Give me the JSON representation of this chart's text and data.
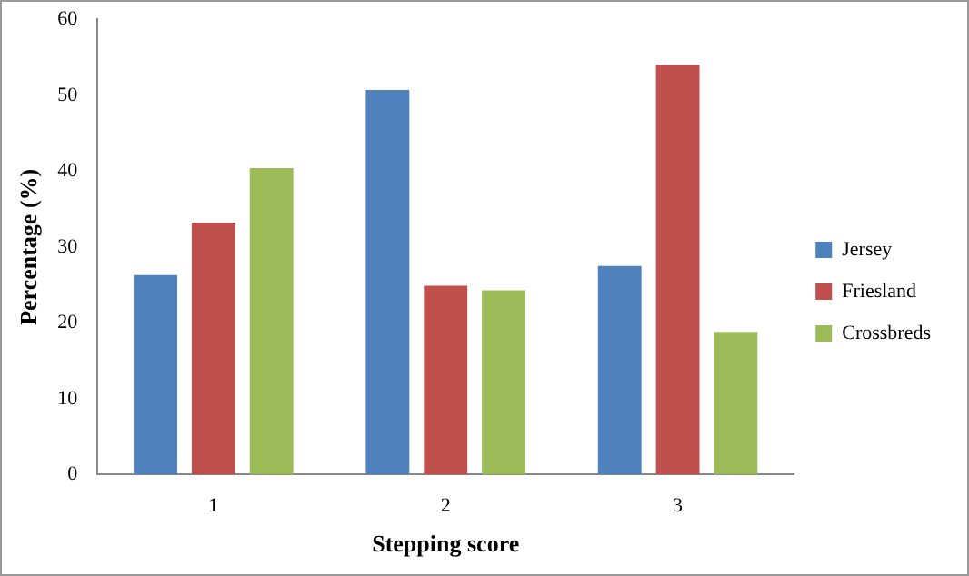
{
  "chart_data": {
    "type": "bar",
    "xlabel": "Stepping score",
    "ylabel": "Percentage (%)",
    "categories": [
      "1",
      "2",
      "3"
    ],
    "series": [
      {
        "name": "Jersey",
        "color": "#4f81bd",
        "values": [
          26.3,
          50.7,
          27.5
        ]
      },
      {
        "name": "Friesland",
        "color": "#c0504d",
        "values": [
          33.2,
          24.9,
          54
        ]
      },
      {
        "name": "Crossbreds",
        "color": "#9bbb59",
        "values": [
          40.4,
          24.3,
          18.8
        ]
      }
    ],
    "ylim": [
      0,
      60
    ],
    "yticks": [
      0,
      10,
      20,
      30,
      40,
      50,
      60
    ],
    "grid": false,
    "legend": "right"
  }
}
